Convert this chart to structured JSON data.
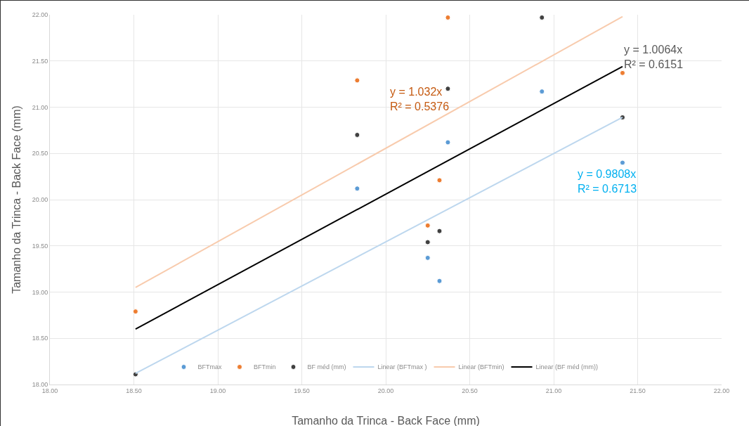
{
  "chart_data": {
    "type": "scatter",
    "xlabel": "Tamanho da Trinca - Back Face (mm)",
    "ylabel": "Tamanho da Trinca - Back Face (mm)",
    "xlim": [
      18,
      22
    ],
    "ylim": [
      18,
      22
    ],
    "xticks": [
      {
        "value": 18,
        "label": "18.00"
      },
      {
        "value": 18.5,
        "label": "18.50"
      },
      {
        "value": 19,
        "label": "19.00"
      },
      {
        "value": 19.5,
        "label": "19.50"
      },
      {
        "value": 20,
        "label": "20.00"
      },
      {
        "value": 20.5,
        "label": "20.50"
      },
      {
        "value": 21,
        "label": "21.00"
      },
      {
        "value": 21.5,
        "label": "21.50"
      },
      {
        "value": 22,
        "label": "22.00"
      }
    ],
    "yticks": [
      {
        "value": 18,
        "label": "18.00"
      },
      {
        "value": 18.5,
        "label": "18.50"
      },
      {
        "value": 19,
        "label": "19.00"
      },
      {
        "value": 19.5,
        "label": "19.50"
      },
      {
        "value": 20,
        "label": "20.00"
      },
      {
        "value": 20.5,
        "label": "20.50"
      },
      {
        "value": 21,
        "label": "21.00"
      },
      {
        "value": 21.5,
        "label": "21.50"
      },
      {
        "value": 22,
        "label": "22.00"
      }
    ],
    "grid": true,
    "legend": "bottom",
    "marker": "circle",
    "series": [
      {
        "name": "BFTmax",
        "color": "#5b9bd5",
        "x": [
          19.83,
          20.25,
          20.32,
          20.37,
          20.93,
          21.41
        ],
        "values": [
          20.12,
          19.37,
          19.12,
          20.62,
          21.17,
          20.4
        ]
      },
      {
        "name": "BFTmin",
        "color": "#ed7d31",
        "x": [
          18.51,
          19.83,
          20.25,
          20.32,
          20.37,
          21.41
        ],
        "values": [
          18.79,
          21.29,
          19.72,
          20.21,
          21.97,
          21.37
        ]
      },
      {
        "name": "BF méd (mm)",
        "color": "#404040",
        "x": [
          18.51,
          19.83,
          20.25,
          20.32,
          20.37,
          20.93,
          21.41
        ],
        "values": [
          18.11,
          20.7,
          19.54,
          19.66,
          21.2,
          21.97,
          20.89
        ]
      },
      {
        "name": "Linear (BFTmax )",
        "type": "line",
        "marker": "none",
        "color": "#bdd7ee",
        "x": [
          18.51,
          21.41
        ],
        "values": [
          18.12,
          20.89
        ]
      },
      {
        "name": "Linear (BFTmin)",
        "type": "line",
        "marker": "none",
        "color": "#f8cbad",
        "x": [
          18.51,
          21.41
        ],
        "values": [
          19.05,
          21.98
        ]
      },
      {
        "name": "Linear (BF méd (mm))",
        "type": "line",
        "marker": "none",
        "color": "#000000",
        "x": [
          18.51,
          21.41
        ],
        "values": [
          18.6,
          21.44
        ]
      }
    ],
    "annotations": [
      "y = 0.9808x\nR² = 0.6713",
      "y = 1.032x\nR² = 0.5376",
      "y = 1.0064x\nR² = 0.6151"
    ]
  }
}
